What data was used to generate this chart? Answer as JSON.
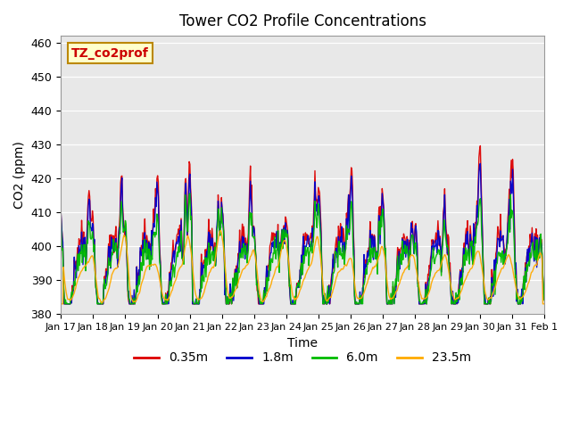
{
  "title": "Tower CO2 Profile Concentrations",
  "xlabel": "Time",
  "ylabel": "CO2 (ppm)",
  "ylim": [
    380,
    462
  ],
  "yticks": [
    380,
    390,
    400,
    410,
    420,
    430,
    440,
    450,
    460
  ],
  "label_box_text": "TZ_co2prof",
  "label_box_color": "#ffffcc",
  "label_box_text_color": "#cc0000",
  "bg_color": "#e8e8e8",
  "lines": [
    {
      "label": "0.35m",
      "color": "#dd0000",
      "lw": 1.0
    },
    {
      "label": "1.8m",
      "color": "#0000cc",
      "lw": 1.0
    },
    {
      "label": "6.0m",
      "color": "#00bb00",
      "lw": 1.0
    },
    {
      "label": "23.5m",
      "color": "#ffaa00",
      "lw": 1.0
    }
  ],
  "xtick_labels": [
    "Jan 17",
    "Jan 18",
    "Jan 19",
    "Jan 20",
    "Jan 21",
    "Jan 22",
    "Jan 23",
    "Jan 24",
    "Jan 25",
    "Jan 26",
    "Jan 27",
    "Jan 28",
    "Jan 29",
    "Jan 30",
    "Jan 31",
    "Feb 1"
  ],
  "n_points_per_day": 48,
  "n_days": 15
}
